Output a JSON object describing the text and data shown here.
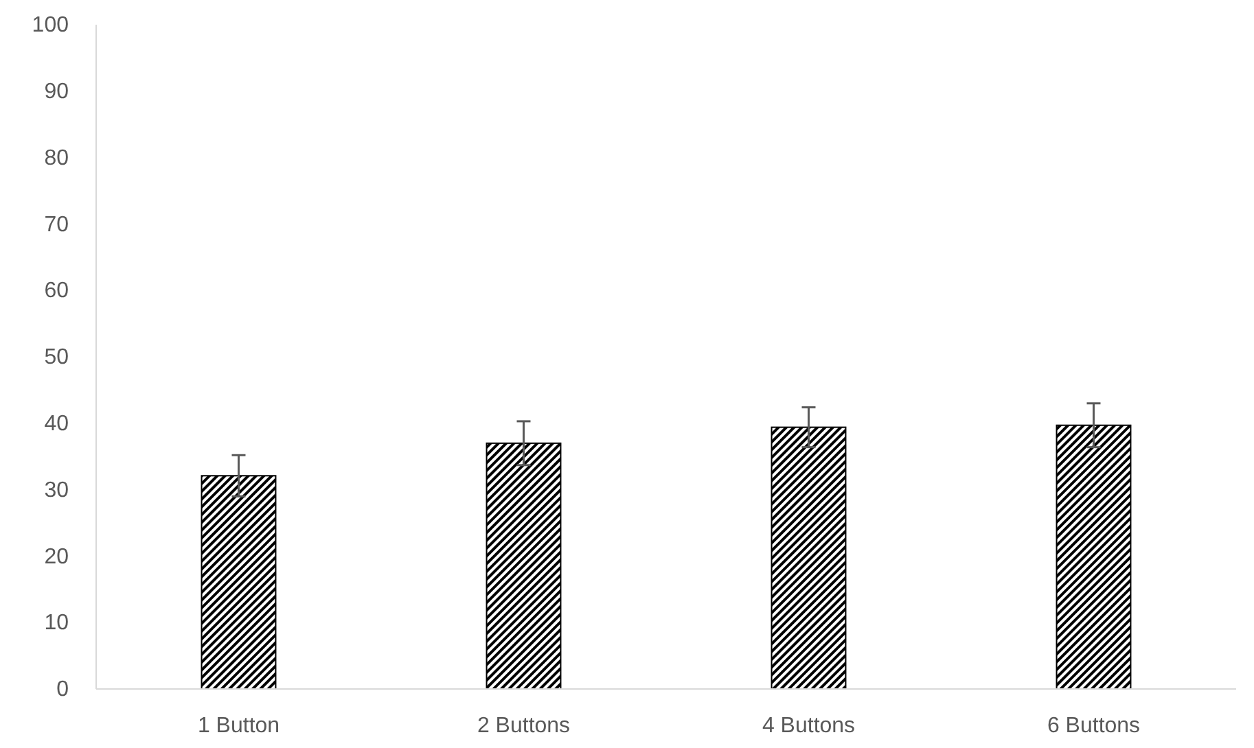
{
  "chart_data": {
    "type": "bar",
    "categories": [
      "1 Button",
      "2 Buttons",
      "4 Buttons",
      "6 Buttons"
    ],
    "values": [
      32.1,
      37.0,
      39.4,
      39.7
    ],
    "errors": [
      3.1,
      3.3,
      3.0,
      3.3
    ],
    "color": "#000000",
    "ylim": [
      0,
      100
    ],
    "yticks": [
      0,
      10,
      20,
      30,
      40,
      50,
      60,
      70,
      80,
      90,
      100
    ],
    "grid": false
  }
}
